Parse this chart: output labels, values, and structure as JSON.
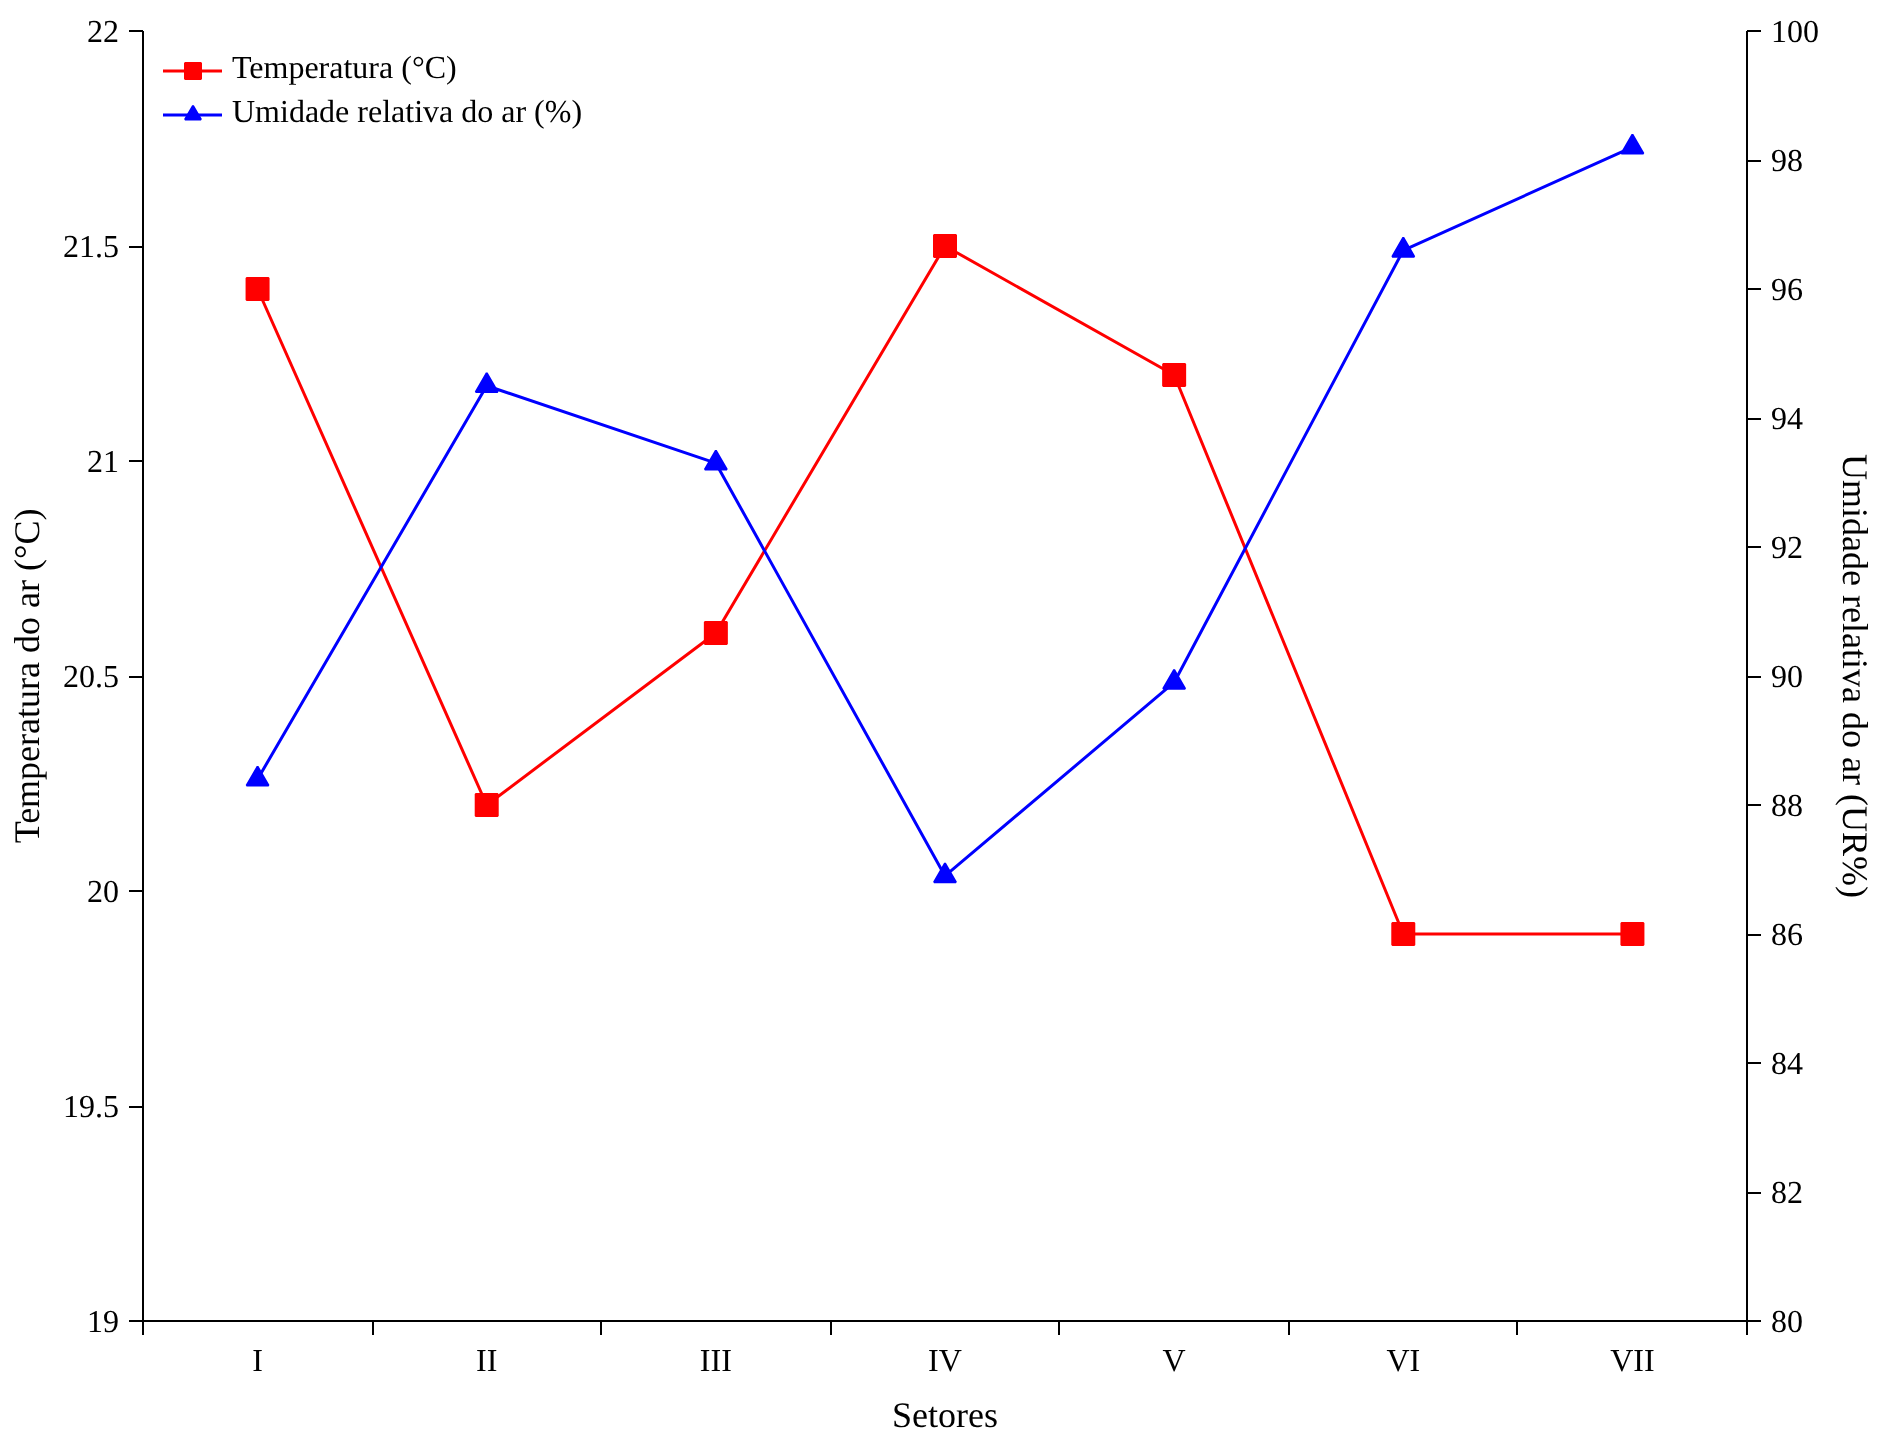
{
  "chart_data": {
    "type": "line",
    "xlabel": "Setores",
    "ylabel": "Temperatura do ar (°C)",
    "y2label": "Umidade relativa do ar (UR%)",
    "categories": [
      "I",
      "II",
      "III",
      "IV",
      "V",
      "VI",
      "VII"
    ],
    "series": [
      {
        "name": "Temperatura (°C)",
        "color": "#ff0000",
        "marker": "square",
        "values": [
          21.4,
          20.2,
          20.6,
          21.5,
          21.2,
          19.9,
          19.9
        ]
      },
      {
        "name": "Umidade relativa do ar (%)",
        "color": "#0000ff",
        "marker": "triangle",
        "axis": "y2",
        "values": [
          88.4,
          94.5,
          93.3,
          86.9,
          89.9,
          96.6,
          98.2
        ]
      }
    ],
    "ylim": [
      19,
      22
    ],
    "yticks": [
      19,
      19.5,
      20,
      20.5,
      21,
      21.5,
      22
    ],
    "y2lim": [
      80,
      100
    ],
    "y2ticks": [
      80,
      82,
      84,
      86,
      88,
      90,
      92,
      94,
      96,
      98,
      100
    ],
    "legend": "top left",
    "grid": false,
    "line_style": "solid"
  }
}
